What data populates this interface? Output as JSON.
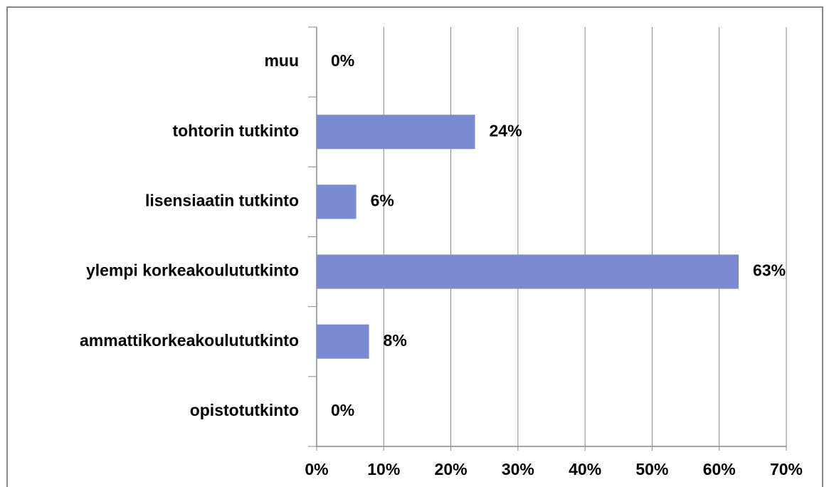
{
  "chart_data": {
    "type": "bar",
    "orientation": "horizontal",
    "categories": [
      "muu",
      "tohtorin tutkinto",
      "lisensiaatin tutkinto",
      "ylempi korkeakoulututkinto",
      "ammattikorkeakoulututkinto",
      "opistotutkinto"
    ],
    "values": [
      0,
      23.6,
      5.9,
      62.9,
      7.8,
      0
    ],
    "value_labels": [
      "0%",
      "24%",
      "6%",
      "63%",
      "8%",
      "0%"
    ],
    "color": "#7b8bd1",
    "xlim": [
      0,
      70
    ],
    "xticks": [
      {
        "value": 0,
        "label": "0%"
      },
      {
        "value": 10,
        "label": "10%"
      },
      {
        "value": 20,
        "label": "20%"
      },
      {
        "value": 30,
        "label": "30%"
      },
      {
        "value": 40,
        "label": "40%"
      },
      {
        "value": 50,
        "label": "50%"
      },
      {
        "value": 60,
        "label": "60%"
      },
      {
        "value": 70,
        "label": "70%"
      }
    ],
    "grid": true
  }
}
